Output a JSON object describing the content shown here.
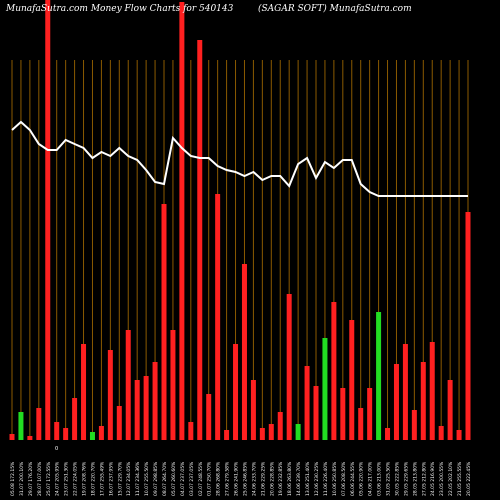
{
  "header": {
    "left_title": "MunafaSutra.com  Money Flow  Charts for 540143",
    "right_title": "(SAGAR                    SOFT) MunafaSutra.com"
  },
  "colors": {
    "background": "#000000",
    "grid": "#8B5A00",
    "up": "#22dd22",
    "down": "#ff2020",
    "line": "#ffffff"
  },
  "chart_data": {
    "type": "bar",
    "title": "MunafaSutra.com  Money Flow  Charts for 540143 (SAGAR SOFT) MunafaSutra.com",
    "mid_tick_label": "0",
    "categories": [
      "05.08 172.15%",
      "31.07 200.10%",
      "29.07 176.20%",
      "28.07 107.00%",
      "25.07 172.55%",
      "24.07 205.95%",
      "23.07 251.30%",
      "22.07 224.05%",
      "19.07 208.76%",
      "18.07 220.70%",
      "17.07 255.49%",
      "16.07 237.95%",
      "15.07 229.70%",
      "12.07 234.05%",
      "11.07 234.36%",
      "10.07 255.50%",
      "09.07 298.85%",
      "08.07 264.70%",
      "05.07 260.60%",
      "04.07 237.05%",
      "03.07 237.05%",
      "02.07 248.55%",
      "01.07 250.70%",
      "28.06 268.80%",
      "27.06 279.58%",
      "26.06 241.90%",
      "25.06 246.85%",
      "24.06 233.70%",
      "21.06 229.25%",
      "20.06 228.85%",
      "19.06 232.85%",
      "18.06 263.80%",
      "14.06 239.70%",
      "13.06 251.40%",
      "12.06 230.25%",
      "11.06 226.40%",
      "10.06 250.85%",
      "07.06 208.50%",
      "06.06 244.55%",
      "05.06 220.90%",
      "04.06 217.00%",
      "03.06 213.00%",
      "31.05 225.50%",
      "30.05 222.85%",
      "29.05 229.65%",
      "28.05 213.80%",
      "27.05 212.80%",
      "24.05 216.90%",
      "23.05 200.55%",
      "22.05 202.10%",
      "21.05 255.55%",
      "20.05 222.45%"
    ],
    "series": [
      {
        "values": [
          3,
          14,
          2,
          16,
          220,
          9,
          6,
          21,
          48,
          4,
          7,
          45,
          17,
          55,
          30,
          32,
          39,
          118,
          55,
          219,
          9,
          200,
          23,
          123,
          5,
          48,
          88,
          30,
          6,
          8,
          14,
          73,
          8,
          37,
          27,
          51,
          69,
          26,
          60,
          16,
          26,
          64,
          6,
          38,
          48,
          15,
          39,
          49,
          7,
          30,
          5,
          114
        ]
      }
    ],
    "bar_colors": [
      "red",
      "green",
      "red",
      "red",
      "red",
      "red",
      "red",
      "red",
      "red",
      "green",
      "red",
      "red",
      "red",
      "red",
      "red",
      "red",
      "red",
      "red",
      "red",
      "red",
      "red",
      "red",
      "red",
      "red",
      "red",
      "red",
      "red",
      "red",
      "red",
      "red",
      "red",
      "red",
      "green",
      "red",
      "red",
      "green",
      "red",
      "red",
      "red",
      "red",
      "red",
      "green",
      "red",
      "red",
      "red",
      "red",
      "red",
      "red",
      "red",
      "red",
      "red",
      "red"
    ],
    "line_values": [
      155,
      159,
      155,
      148,
      145,
      145,
      150,
      148,
      146,
      141,
      144,
      142,
      146,
      142,
      140,
      135,
      129,
      128,
      151,
      146,
      142,
      141,
      141,
      137,
      135,
      134,
      132,
      134,
      130,
      132,
      132,
      127,
      138,
      141,
      131,
      139,
      136,
      140,
      140,
      128,
      124,
      122,
      122,
      122,
      122,
      122,
      122,
      122,
      122,
      122,
      122,
      122
    ],
    "ylim": [
      0,
      220
    ],
    "grid": true
  }
}
